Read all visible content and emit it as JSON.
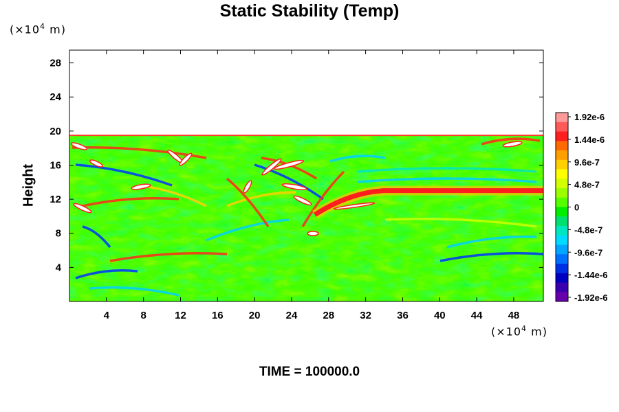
{
  "chart_data": {
    "type": "heatmap",
    "title": "Static Stability (Temp)",
    "ylabel": "Height",
    "xlabel": "",
    "x_unit": {
      "prefix": "(×10",
      "exp": "4",
      "suffix": " m)"
    },
    "y_unit": {
      "prefix": "(×10",
      "exp": "4",
      "suffix": " m)"
    },
    "xlim": [
      0,
      51.2
    ],
    "ylim": [
      0,
      29.5
    ],
    "x_ticks": [
      4,
      8,
      12,
      16,
      20,
      24,
      28,
      32,
      36,
      40,
      44,
      48
    ],
    "y_ticks": [
      4,
      8,
      12,
      16,
      20,
      24,
      28
    ],
    "colorbar": {
      "labels": [
        "1.92e-6",
        "1.44e-6",
        "9.6e-7",
        "4.8e-7",
        "0",
        "-4.8e-7",
        "-9.6e-7",
        "-1.44e-6",
        "-1.92e-6"
      ],
      "colors": [
        "#ff9a9a",
        "#ff5a5a",
        "#ff1e1e",
        "#ff6a00",
        "#ff9e00",
        "#ffd000",
        "#ffff00",
        "#d4ff00",
        "#9cff00",
        "#55ff00",
        "#00ee00",
        "#00e070",
        "#00e6c0",
        "#00dcff",
        "#00a6ff",
        "#0070ff",
        "#0030e6",
        "#0000c0",
        "#3a00b0",
        "#6600aa"
      ],
      "range": [
        -1.92e-06,
        1.92e-06
      ]
    },
    "data_top_height": 19.5,
    "features": [
      {
        "label": "strong positive stability layer",
        "x_range": [
          28,
          51.2
        ],
        "height": 12.6
      },
      {
        "label": "high-value pockets",
        "x_range": [
          0,
          30
        ],
        "height_range": [
          10,
          19
        ]
      }
    ]
  },
  "footer": {
    "time_label": "TIME = 100000.0"
  }
}
